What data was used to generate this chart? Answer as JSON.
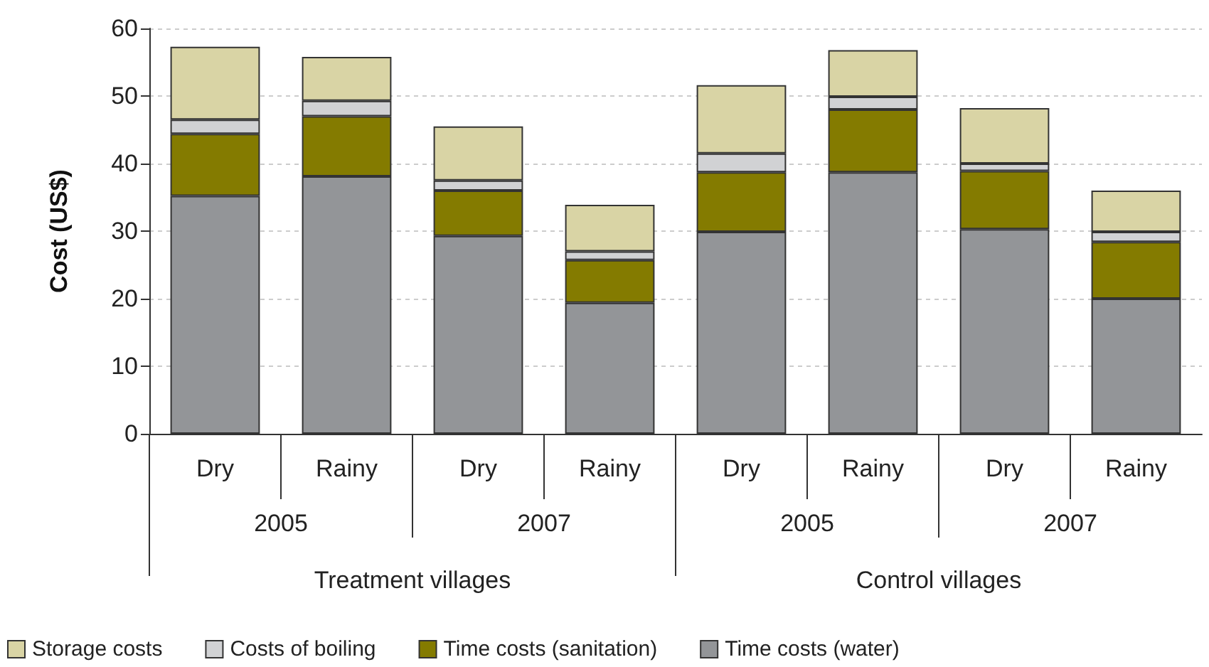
{
  "chart_data": {
    "type": "bar",
    "stacked": true,
    "ylabel": "Cost (US$)",
    "categories": [
      "Dry",
      "Rainy",
      "Dry",
      "Rainy",
      "Dry",
      "Rainy",
      "Dry",
      "Rainy"
    ],
    "annotations": [
      "2005",
      "2007",
      "2005",
      "2007",
      "Treatment villages",
      "Control villages"
    ],
    "series": [
      {
        "name": "Time costs (water)",
        "color": "#939598",
        "values": [
          35.2,
          38.1,
          29.3,
          19.4,
          29.9,
          38.7,
          30.3,
          20.0
        ]
      },
      {
        "name": "Time costs (sanitation)",
        "color": "#847b00",
        "values": [
          9.2,
          8.9,
          6.7,
          6.3,
          8.8,
          9.3,
          8.6,
          8.4
        ]
      },
      {
        "name": "Costs of boiling",
        "color": "#d1d2d4",
        "values": [
          2.1,
          2.3,
          1.5,
          1.3,
          2.8,
          1.9,
          1.1,
          1.5
        ]
      },
      {
        "name": "Storage costs",
        "color": "#d9d4a5",
        "values": [
          10.8,
          6.5,
          8.0,
          6.9,
          10.1,
          6.9,
          8.2,
          6.1
        ]
      }
    ],
    "ylim": [
      0,
      60
    ],
    "yticks": [
      0,
      10,
      20,
      30,
      40,
      50,
      60
    ],
    "grid": "y",
    "legend": "bottom"
  }
}
